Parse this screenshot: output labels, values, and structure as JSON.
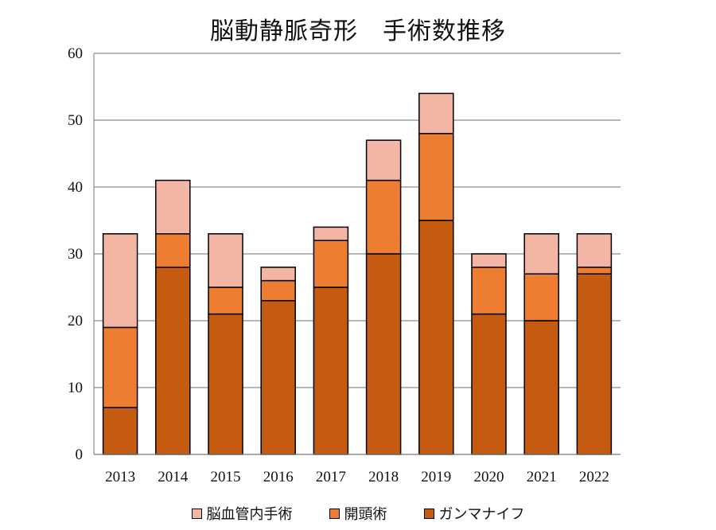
{
  "chart_data": {
    "type": "bar",
    "stacked": true,
    "title": "脳動静脈奇形　手術数推移",
    "xlabel": "",
    "ylabel": "",
    "categories": [
      "2013",
      "2014",
      "2015",
      "2016",
      "2017",
      "2018",
      "2019",
      "2020",
      "2021",
      "2022"
    ],
    "ylim": [
      0,
      60
    ],
    "yticks": [
      0,
      10,
      20,
      30,
      40,
      50,
      60
    ],
    "grid": true,
    "legend_position": "bottom",
    "series": [
      {
        "name": "ガンマナイフ",
        "color": "#C55A11",
        "values": [
          7,
          28,
          21,
          23,
          25,
          30,
          35,
          21,
          20,
          27
        ]
      },
      {
        "name": "開頭術",
        "color": "#ED7D31",
        "values": [
          12,
          5,
          4,
          3,
          7,
          11,
          13,
          7,
          7,
          1
        ]
      },
      {
        "name": "脳血管内手術",
        "color": "#F4B6A4",
        "values": [
          14,
          8,
          8,
          2,
          2,
          6,
          6,
          2,
          6,
          5
        ]
      }
    ],
    "legend_order": [
      "脳血管内手術",
      "開頭術",
      "ガンマナイフ"
    ]
  }
}
